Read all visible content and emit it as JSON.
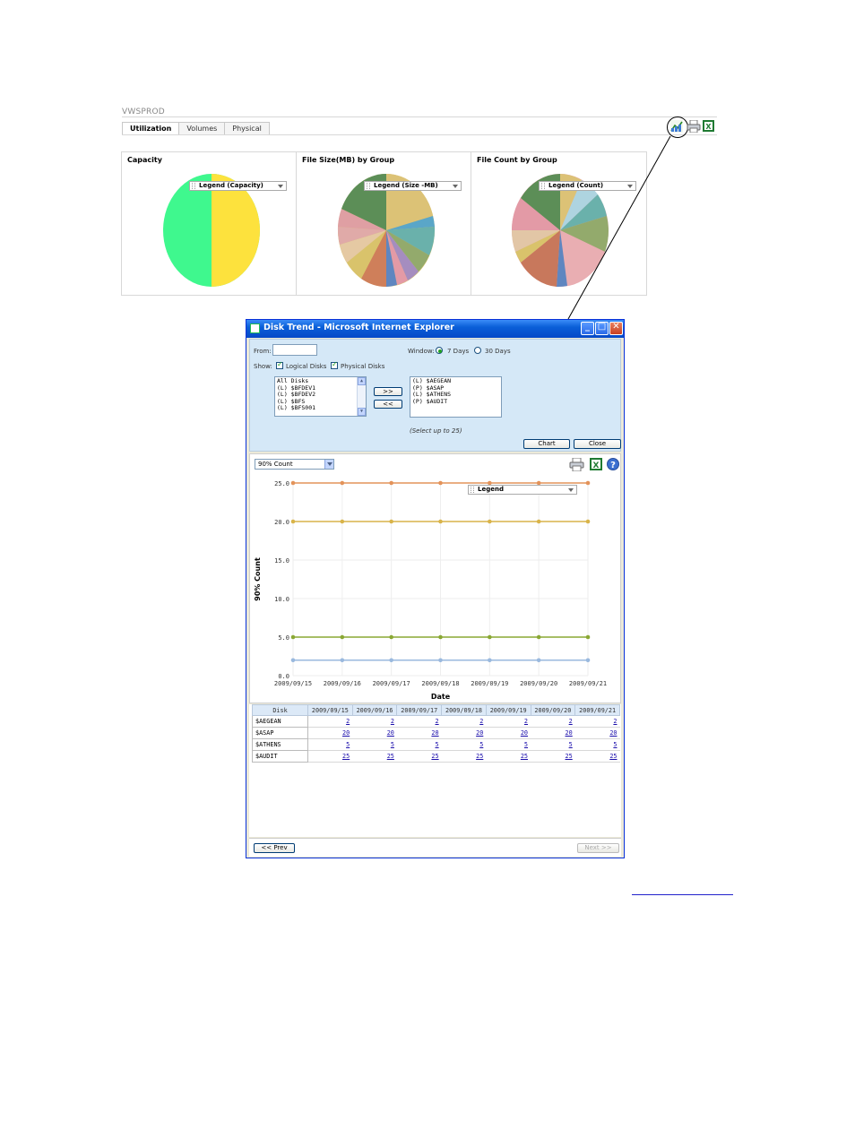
{
  "app": {
    "title": "VWSPROD",
    "tabs": [
      {
        "label": "Utilization",
        "active": true
      },
      {
        "label": "Volumes",
        "active": false
      },
      {
        "label": "Physical",
        "active": false
      }
    ],
    "icons": [
      "chart-icon",
      "print-icon",
      "excel-icon"
    ]
  },
  "pie_charts": [
    {
      "title": "Capacity",
      "legend": "Legend (Capacity)"
    },
    {
      "title": "File Size(MB) by Group",
      "legend": "Legend (Size -MB)"
    },
    {
      "title": "File Count by Group",
      "legend": "Legend (Count)"
    }
  ],
  "dialog": {
    "title": "Disk Trend - Microsoft Internet Explorer",
    "from_label": "From:",
    "from_value": "",
    "window_label": "Window:",
    "window_options": [
      {
        "label": "7 Days",
        "selected": true
      },
      {
        "label": "30 Days",
        "selected": false
      }
    ],
    "show_label": "Show:",
    "show_options": [
      {
        "label": "Logical Disks",
        "checked": true
      },
      {
        "label": "Physical Disks",
        "checked": true
      }
    ],
    "available_disks": [
      "All Disks",
      "(L) $BFDEV1",
      "(L) $BFDEV2",
      "(L) $BFS",
      "(L) $BFS001"
    ],
    "selected_disks": [
      "(L) $AEGEAN",
      "(P) $ASAP",
      "(L) $ATHENS",
      "(P) $AUDIT"
    ],
    "add_button": ">>",
    "remove_button": "<<",
    "select_hint": "(Select up to 25)",
    "chart_button": "Chart",
    "close_button": "Close",
    "metric_select": "90% Count",
    "prev_button": "<< Prev",
    "next_button": "Next >>"
  },
  "chart_data": {
    "type": "line",
    "x": [
      "2009/09/15",
      "2009/09/16",
      "2009/09/17",
      "2009/09/18",
      "2009/09/19",
      "2009/09/20",
      "2009/09/21"
    ],
    "series": [
      {
        "name": "",
        "values": [
          25,
          25,
          25,
          25,
          25,
          25,
          25
        ],
        "color": "#e3935a"
      },
      {
        "name": "",
        "values": [
          20,
          20,
          20,
          20,
          20,
          20,
          20
        ],
        "color": "#d9b44a"
      },
      {
        "name": "",
        "values": [
          5,
          5,
          5,
          5,
          5,
          5,
          5
        ],
        "color": "#8aa834"
      },
      {
        "name": "",
        "values": [
          2,
          2,
          2,
          2,
          2,
          2,
          2
        ],
        "color": "#9ab9de"
      }
    ],
    "yticks": [
      "0.0",
      "5.0",
      "10.0",
      "15.0",
      "20.0",
      "25.0"
    ],
    "ylim": [
      0,
      25
    ],
    "xlabel": "Date",
    "ylabel": "90% Count",
    "legend_label": "Legend",
    "grid": true
  },
  "table": {
    "header_disk": "Disk",
    "dates": [
      "2009/09/15",
      "2009/09/16",
      "2009/09/17",
      "2009/09/18",
      "2009/09/19",
      "2009/09/20",
      "2009/09/21"
    ],
    "rows": [
      {
        "disk": "$AEGEAN",
        "values": [
          "2",
          "2",
          "2",
          "2",
          "2",
          "2",
          "2"
        ]
      },
      {
        "disk": "$ASAP",
        "values": [
          "20",
          "20",
          "20",
          "20",
          "20",
          "20",
          "20"
        ]
      },
      {
        "disk": "$ATHENS",
        "values": [
          "5",
          "5",
          "5",
          "5",
          "5",
          "5",
          "5"
        ]
      },
      {
        "disk": "$AUDIT",
        "values": [
          "25",
          "25",
          "25",
          "25",
          "25",
          "25",
          "25"
        ]
      }
    ]
  },
  "colors": {
    "capacity_used": "#fde23d",
    "capacity_free": "#3ff88e"
  }
}
